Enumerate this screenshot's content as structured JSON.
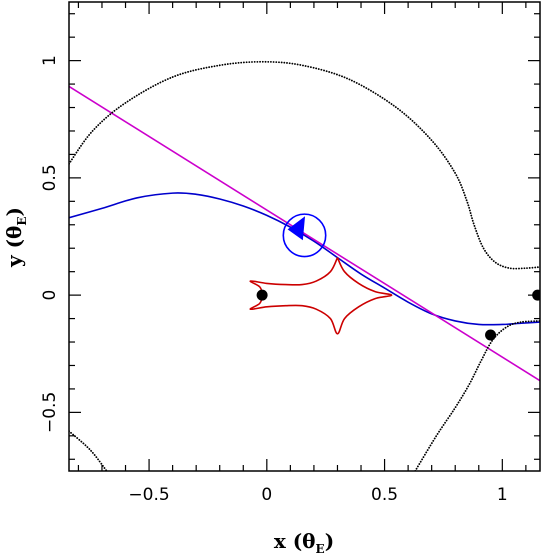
{
  "chart_data": {
    "type": "line",
    "title": "",
    "xlabel": "x (θ",
    "xlabel_sub": "E",
    "ylabel": "y (θ",
    "ylabel_sub": "E",
    "label_close": ")",
    "xlim": [
      -0.84,
      1.16
    ],
    "ylim": [
      -0.75,
      1.25
    ],
    "x_ticks": [
      -0.5,
      0,
      0.5,
      1
    ],
    "x_tick_labels": [
      "−0.5",
      "0",
      "0.5",
      "1"
    ],
    "y_ticks": [
      -0.5,
      0,
      0.5,
      1
    ],
    "y_tick_labels": [
      "−0.5",
      "0",
      "0.5",
      "1"
    ],
    "grid": false,
    "colors": {
      "critical_curve": "#000000",
      "caustic": "#cc0000",
      "source_trajectory": "#0000cc",
      "binary_axis": "#cc00cc",
      "lens_points": "#000000",
      "source_circle": "#0000ff"
    },
    "series": [
      {
        "role": "source-trajectory",
        "style": "solid",
        "points": [
          [
            -0.84,
            0.33
          ],
          [
            -0.7,
            0.37
          ],
          [
            -0.55,
            0.415
          ],
          [
            -0.4,
            0.435
          ],
          [
            -0.3,
            0.43
          ],
          [
            -0.2,
            0.41
          ],
          [
            -0.1,
            0.38
          ],
          [
            0.0,
            0.34
          ],
          [
            0.1,
            0.29
          ],
          [
            0.2,
            0.23
          ],
          [
            0.3,
            0.16
          ],
          [
            0.4,
            0.09
          ],
          [
            0.5,
            0.03
          ],
          [
            0.6,
            -0.03
          ],
          [
            0.7,
            -0.08
          ],
          [
            0.8,
            -0.11
          ],
          [
            0.9,
            -0.125
          ],
          [
            1.0,
            -0.125
          ],
          [
            1.08,
            -0.12
          ],
          [
            1.16,
            -0.115
          ]
        ]
      },
      {
        "role": "binary-axis",
        "style": "solid",
        "points": [
          [
            -0.84,
            0.89
          ],
          [
            1.16,
            -0.365
          ]
        ]
      },
      {
        "role": "critical-curve-upper",
        "style": "dotted",
        "points": [
          [
            -0.84,
            0.56
          ],
          [
            -0.74,
            0.7
          ],
          [
            -0.6,
            0.82
          ],
          [
            -0.4,
            0.93
          ],
          [
            -0.2,
            0.98
          ],
          [
            -0.02,
            0.995
          ],
          [
            0.15,
            0.98
          ],
          [
            0.35,
            0.92
          ],
          [
            0.55,
            0.8
          ],
          [
            0.7,
            0.66
          ],
          [
            0.8,
            0.52
          ],
          [
            0.85,
            0.4
          ],
          [
            0.88,
            0.3
          ],
          [
            0.92,
            0.2
          ],
          [
            0.97,
            0.14
          ],
          [
            1.03,
            0.115
          ],
          [
            1.1,
            0.115
          ],
          [
            1.16,
            0.12
          ]
        ]
      },
      {
        "role": "critical-curve-lower",
        "style": "dotted",
        "points": [
          [
            0.63,
            -0.75
          ],
          [
            0.72,
            -0.6
          ],
          [
            0.8,
            -0.48
          ],
          [
            0.86,
            -0.38
          ],
          [
            0.91,
            -0.28
          ],
          [
            0.96,
            -0.19
          ],
          [
            1.02,
            -0.135
          ],
          [
            1.08,
            -0.115
          ],
          [
            1.16,
            -0.11
          ]
        ]
      },
      {
        "role": "critical-curve-left",
        "style": "dotted",
        "points": [
          [
            -0.84,
            -0.58
          ],
          [
            -0.75,
            -0.66
          ],
          [
            -0.68,
            -0.75
          ]
        ]
      },
      {
        "role": "caustic",
        "style": "solid",
        "points": [
          [
            0.3,
            0.16
          ],
          [
            0.27,
            0.1
          ],
          [
            0.21,
            0.06
          ],
          [
            0.15,
            0.045
          ],
          [
            0.08,
            0.045
          ],
          [
            0.0,
            0.05
          ],
          [
            -0.07,
            0.06
          ],
          [
            -0.03,
            0.035
          ],
          [
            -0.02,
            0.0
          ],
          [
            -0.03,
            -0.035
          ],
          [
            -0.07,
            -0.06
          ],
          [
            0.0,
            -0.05
          ],
          [
            0.08,
            -0.045
          ],
          [
            0.15,
            -0.045
          ],
          [
            0.21,
            -0.06
          ],
          [
            0.27,
            -0.1
          ],
          [
            0.3,
            -0.165
          ],
          [
            0.33,
            -0.1
          ],
          [
            0.39,
            -0.05
          ],
          [
            0.46,
            -0.015
          ],
          [
            0.53,
            0.0
          ],
          [
            0.46,
            0.015
          ],
          [
            0.39,
            0.05
          ],
          [
            0.33,
            0.1
          ],
          [
            0.3,
            0.16
          ]
        ]
      }
    ],
    "points": [
      {
        "role": "lens",
        "x": -0.02,
        "y": 0.0
      },
      {
        "role": "lens",
        "x": 1.15,
        "y": 0.0
      },
      {
        "role": "image",
        "x": 0.95,
        "y": -0.17
      }
    ],
    "source_circle": {
      "x": 0.16,
      "y": 0.255,
      "radius": 0.09
    },
    "arrow": {
      "x": 0.13,
      "y": 0.272,
      "direction": "left"
    }
  }
}
